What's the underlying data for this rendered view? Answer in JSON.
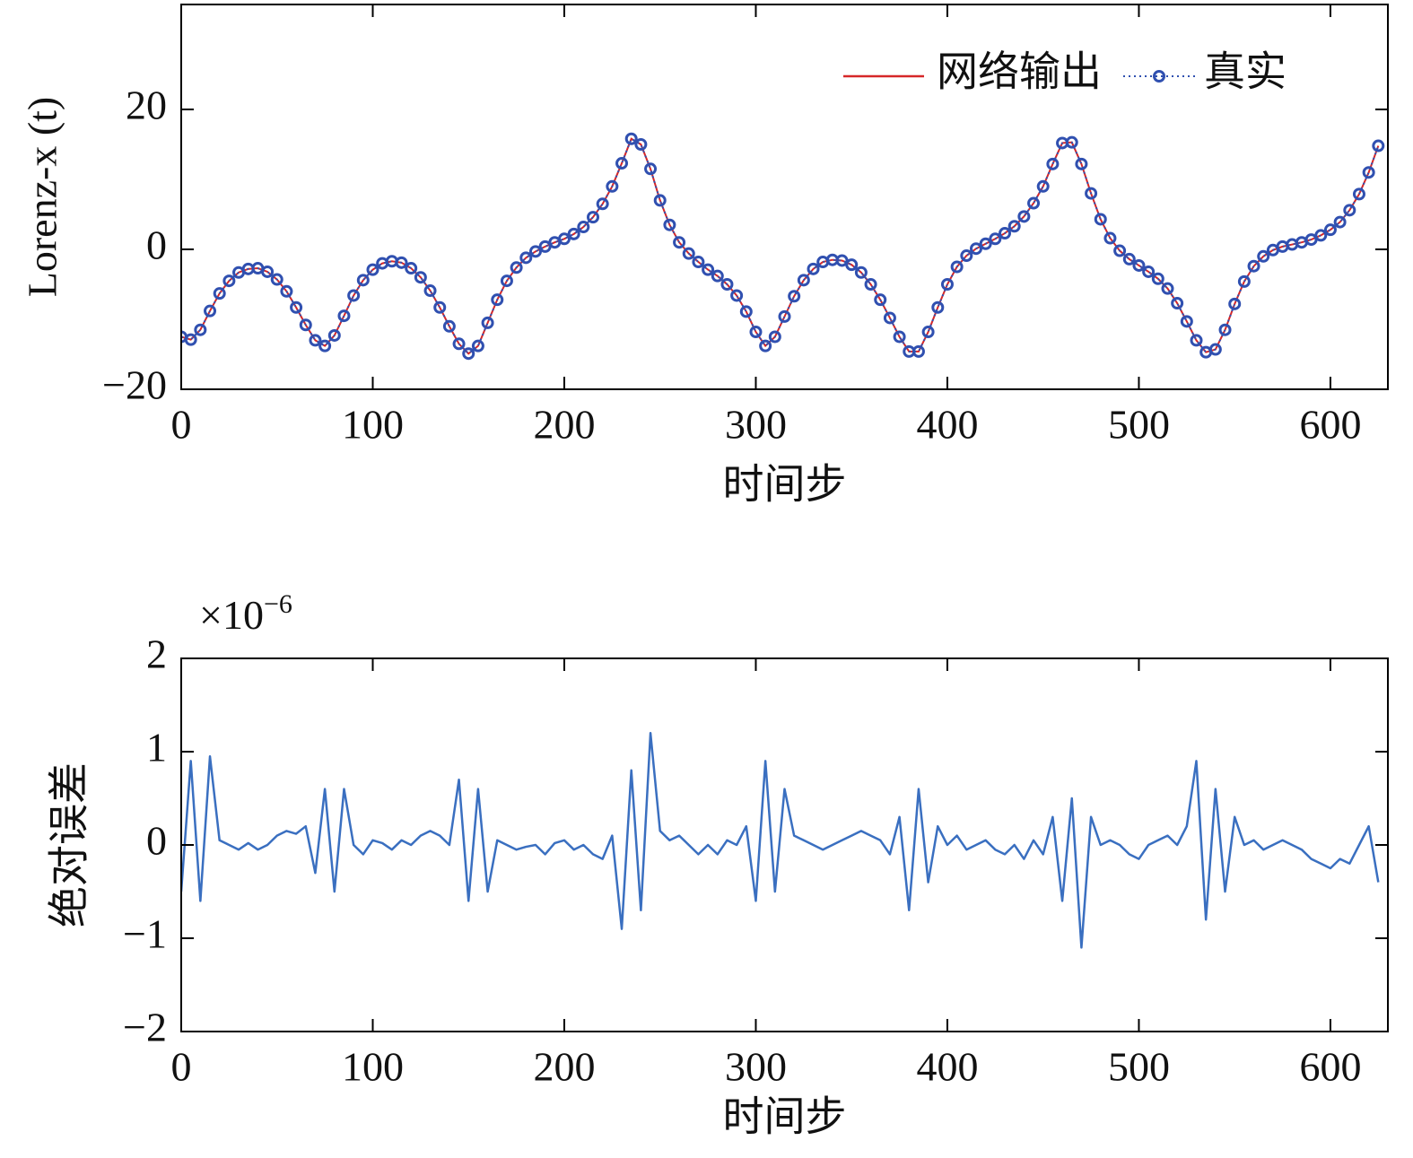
{
  "chart_data": [
    {
      "type": "line",
      "ylabel": "Lorenz-x (t)",
      "xlabel": "时间步",
      "xlim": [
        0,
        630
      ],
      "ylim": [
        -20,
        35
      ],
      "xticks": [
        0,
        100,
        200,
        300,
        400,
        500,
        600
      ],
      "yticks": [
        {
          "value": -20,
          "label": "−20"
        },
        0,
        20
      ],
      "grid": false,
      "legend": "upper right",
      "x": [
        0,
        5,
        10,
        15,
        20,
        25,
        30,
        35,
        40,
        45,
        50,
        55,
        60,
        65,
        70,
        75,
        80,
        85,
        90,
        95,
        100,
        105,
        110,
        115,
        120,
        125,
        130,
        135,
        140,
        145,
        150,
        155,
        160,
        165,
        170,
        175,
        180,
        185,
        190,
        195,
        200,
        205,
        210,
        215,
        220,
        225,
        230,
        235,
        240,
        245,
        250,
        255,
        260,
        265,
        270,
        275,
        280,
        285,
        290,
        295,
        300,
        305,
        310,
        315,
        320,
        325,
        330,
        335,
        340,
        345,
        350,
        355,
        360,
        365,
        370,
        375,
        380,
        385,
        390,
        395,
        400,
        405,
        410,
        415,
        420,
        425,
        430,
        435,
        440,
        445,
        450,
        455,
        460,
        465,
        470,
        475,
        480,
        485,
        490,
        495,
        500,
        505,
        510,
        515,
        520,
        525,
        530,
        535,
        540,
        545,
        550,
        555,
        560,
        565,
        570,
        575,
        580,
        585,
        590,
        595,
        600,
        605,
        610,
        615,
        620,
        625
      ],
      "series": [
        {
          "name": "网络输出",
          "color": "#d62728",
          "style": "line",
          "values": [
            -12.5,
            -12.9,
            -11.5,
            -8.8,
            -6.3,
            -4.5,
            -3.3,
            -2.8,
            -2.7,
            -3.2,
            -4.3,
            -6.0,
            -8.3,
            -10.8,
            -13.0,
            -13.8,
            -12.3,
            -9.5,
            -6.6,
            -4.4,
            -2.9,
            -2.0,
            -1.7,
            -1.9,
            -2.7,
            -4.0,
            -5.9,
            -8.3,
            -11.0,
            -13.5,
            -14.9,
            -13.8,
            -10.5,
            -7.2,
            -4.5,
            -2.6,
            -1.2,
            -0.3,
            0.4,
            1.0,
            1.5,
            2.2,
            3.2,
            4.6,
            6.5,
            9.0,
            12.3,
            15.8,
            15.0,
            11.5,
            7.0,
            3.5,
            1.0,
            -0.6,
            -1.8,
            -2.9,
            -3.8,
            -5.0,
            -6.6,
            -8.9,
            -11.8,
            -13.8,
            -12.5,
            -9.6,
            -6.7,
            -4.4,
            -2.8,
            -1.8,
            -1.5,
            -1.6,
            -2.2,
            -3.3,
            -5.0,
            -7.2,
            -9.8,
            -12.5,
            -14.6,
            -14.6,
            -11.8,
            -8.3,
            -5.0,
            -2.5,
            -0.9,
            0.1,
            0.8,
            1.5,
            2.3,
            3.3,
            4.7,
            6.6,
            9.0,
            12.2,
            15.2,
            15.3,
            12.2,
            8.0,
            4.3,
            1.6,
            -0.2,
            -1.4,
            -2.3,
            -3.2,
            -4.2,
            -5.6,
            -7.7,
            -10.3,
            -13.0,
            -14.7,
            -14.3,
            -11.5,
            -7.8,
            -4.6,
            -2.4,
            -1.0,
            -0.1,
            0.4,
            0.7,
            1.0,
            1.4,
            2.0,
            2.8,
            3.9,
            5.6,
            7.9,
            11.0,
            14.8
          ]
        },
        {
          "name": "真实",
          "color": "#3050b0",
          "style": "dotted-circle",
          "values": [
            -12.5,
            -12.9,
            -11.5,
            -8.8,
            -6.3,
            -4.5,
            -3.3,
            -2.8,
            -2.7,
            -3.2,
            -4.3,
            -6.0,
            -8.3,
            -10.8,
            -13.0,
            -13.8,
            -12.3,
            -9.5,
            -6.6,
            -4.4,
            -2.9,
            -2.0,
            -1.7,
            -1.9,
            -2.7,
            -4.0,
            -5.9,
            -8.3,
            -11.0,
            -13.5,
            -14.9,
            -13.8,
            -10.5,
            -7.2,
            -4.5,
            -2.6,
            -1.2,
            -0.3,
            0.4,
            1.0,
            1.5,
            2.2,
            3.2,
            4.6,
            6.5,
            9.0,
            12.3,
            15.8,
            15.0,
            11.5,
            7.0,
            3.5,
            1.0,
            -0.6,
            -1.8,
            -2.9,
            -3.8,
            -5.0,
            -6.6,
            -8.9,
            -11.8,
            -13.8,
            -12.5,
            -9.6,
            -6.7,
            -4.4,
            -2.8,
            -1.8,
            -1.5,
            -1.6,
            -2.2,
            -3.3,
            -5.0,
            -7.2,
            -9.8,
            -12.5,
            -14.6,
            -14.6,
            -11.8,
            -8.3,
            -5.0,
            -2.5,
            -0.9,
            0.1,
            0.8,
            1.5,
            2.3,
            3.3,
            4.7,
            6.6,
            9.0,
            12.2,
            15.2,
            15.3,
            12.2,
            8.0,
            4.3,
            1.6,
            -0.2,
            -1.4,
            -2.3,
            -3.2,
            -4.2,
            -5.6,
            -7.7,
            -10.3,
            -13.0,
            -14.7,
            -14.3,
            -11.5,
            -7.8,
            -4.6,
            -2.4,
            -1.0,
            -0.1,
            0.4,
            0.7,
            1.0,
            1.4,
            2.0,
            2.8,
            3.9,
            5.6,
            7.9,
            11.0,
            14.8
          ]
        }
      ]
    },
    {
      "type": "line",
      "ylabel": "绝对误差",
      "xlabel": "时间步",
      "y_scale_label": "×10",
      "y_scale_exponent": "−6",
      "xlim": [
        0,
        630
      ],
      "ylim": [
        -2,
        2
      ],
      "xticks": [
        0,
        100,
        200,
        300,
        400,
        500,
        600
      ],
      "yticks": [
        {
          "value": -2,
          "label": "−2"
        },
        {
          "value": -1,
          "label": "−1"
        },
        0,
        1,
        2
      ],
      "grid": false,
      "color": "#3a6fc0",
      "x": [
        0,
        5,
        10,
        15,
        20,
        25,
        30,
        35,
        40,
        45,
        50,
        55,
        60,
        65,
        70,
        75,
        80,
        85,
        90,
        95,
        100,
        105,
        110,
        115,
        120,
        125,
        130,
        135,
        140,
        145,
        150,
        155,
        160,
        165,
        170,
        175,
        180,
        185,
        190,
        195,
        200,
        205,
        210,
        215,
        220,
        225,
        230,
        235,
        240,
        245,
        250,
        255,
        260,
        265,
        270,
        275,
        280,
        285,
        290,
        295,
        300,
        305,
        310,
        315,
        320,
        325,
        330,
        335,
        340,
        345,
        350,
        355,
        360,
        365,
        370,
        375,
        380,
        385,
        390,
        395,
        400,
        405,
        410,
        415,
        420,
        425,
        430,
        435,
        440,
        445,
        450,
        455,
        460,
        465,
        470,
        475,
        480,
        485,
        490,
        495,
        500,
        505,
        510,
        515,
        520,
        525,
        530,
        535,
        540,
        545,
        550,
        555,
        560,
        565,
        570,
        575,
        580,
        585,
        590,
        595,
        600,
        605,
        610,
        615,
        620,
        625
      ],
      "values": [
        -0.5,
        0.9,
        -0.6,
        0.95,
        0.05,
        0.0,
        -0.05,
        0.02,
        -0.05,
        0.0,
        0.1,
        0.15,
        0.12,
        0.2,
        -0.3,
        0.6,
        -0.5,
        0.6,
        0.0,
        -0.1,
        0.05,
        0.02,
        -0.05,
        0.05,
        0.0,
        0.1,
        0.15,
        0.1,
        0.0,
        0.7,
        -0.6,
        0.6,
        -0.5,
        0.05,
        0.0,
        -0.05,
        -0.02,
        0.0,
        -0.1,
        0.02,
        0.05,
        -0.05,
        0.0,
        -0.1,
        -0.15,
        0.1,
        -0.9,
        0.8,
        -0.7,
        1.2,
        0.15,
        0.05,
        0.1,
        0.0,
        -0.1,
        0.0,
        -0.1,
        0.05,
        0.0,
        0.2,
        -0.6,
        0.9,
        -0.5,
        0.6,
        0.1,
        0.05,
        0.0,
        -0.05,
        0.0,
        0.05,
        0.1,
        0.15,
        0.1,
        0.05,
        -0.1,
        0.3,
        -0.7,
        0.6,
        -0.4,
        0.2,
        0.0,
        0.1,
        -0.05,
        0.0,
        0.05,
        -0.05,
        -0.1,
        0.0,
        -0.15,
        0.05,
        -0.1,
        0.3,
        -0.6,
        0.5,
        -1.1,
        0.3,
        0.0,
        0.05,
        0.0,
        -0.1,
        -0.15,
        0.0,
        0.05,
        0.1,
        0.0,
        0.2,
        0.9,
        -0.8,
        0.6,
        -0.5,
        0.3,
        0.0,
        0.05,
        -0.05,
        0.0,
        0.05,
        0.0,
        -0.05,
        -0.15,
        -0.2,
        -0.25,
        -0.15,
        -0.2,
        0.0,
        0.2,
        -0.4
      ]
    }
  ]
}
